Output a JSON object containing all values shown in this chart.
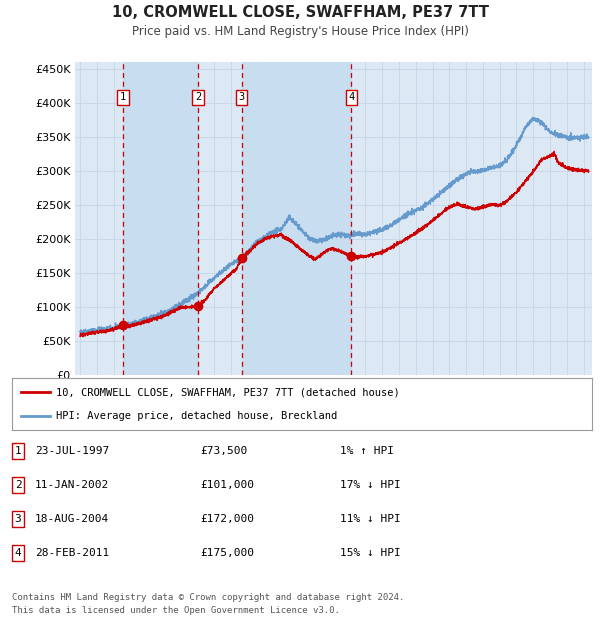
{
  "title": "10, CROMWELL CLOSE, SWAFFHAM, PE37 7TT",
  "subtitle": "Price paid vs. HM Land Registry's House Price Index (HPI)",
  "ytick_values": [
    0,
    50000,
    100000,
    150000,
    200000,
    250000,
    300000,
    350000,
    400000,
    450000
  ],
  "ylim": [
    0,
    460000
  ],
  "xlim_start": 1994.7,
  "xlim_end": 2025.5,
  "background_color": "#ffffff",
  "plot_bg_color": "#dce9f5",
  "grid_color": "#c8d8e8",
  "sale_dates": [
    1997.55,
    2002.03,
    2004.63,
    2011.16
  ],
  "sale_prices": [
    73500,
    101000,
    172000,
    175000
  ],
  "sale_labels": [
    "1",
    "2",
    "3",
    "4"
  ],
  "legend_line1": "10, CROMWELL CLOSE, SWAFFHAM, PE37 7TT (detached house)",
  "legend_line2": "HPI: Average price, detached house, Breckland",
  "table_rows": [
    [
      "1",
      "23-JUL-1997",
      "£73,500",
      "1% ↑ HPI"
    ],
    [
      "2",
      "11-JAN-2002",
      "£101,000",
      "17% ↓ HPI"
    ],
    [
      "3",
      "18-AUG-2004",
      "£172,000",
      "11% ↓ HPI"
    ],
    [
      "4",
      "28-FEB-2011",
      "£175,000",
      "15% ↓ HPI"
    ]
  ],
  "footer": "Contains HM Land Registry data © Crown copyright and database right 2024.\nThis data is licensed under the Open Government Licence v3.0.",
  "red_line_color": "#cc0000",
  "blue_line_color": "#6699cc",
  "sale_dot_color": "#cc0000",
  "dashed_line_color": "#cc0000",
  "label_box_color": "#cc0000",
  "shade_color": "#c5dcf0"
}
